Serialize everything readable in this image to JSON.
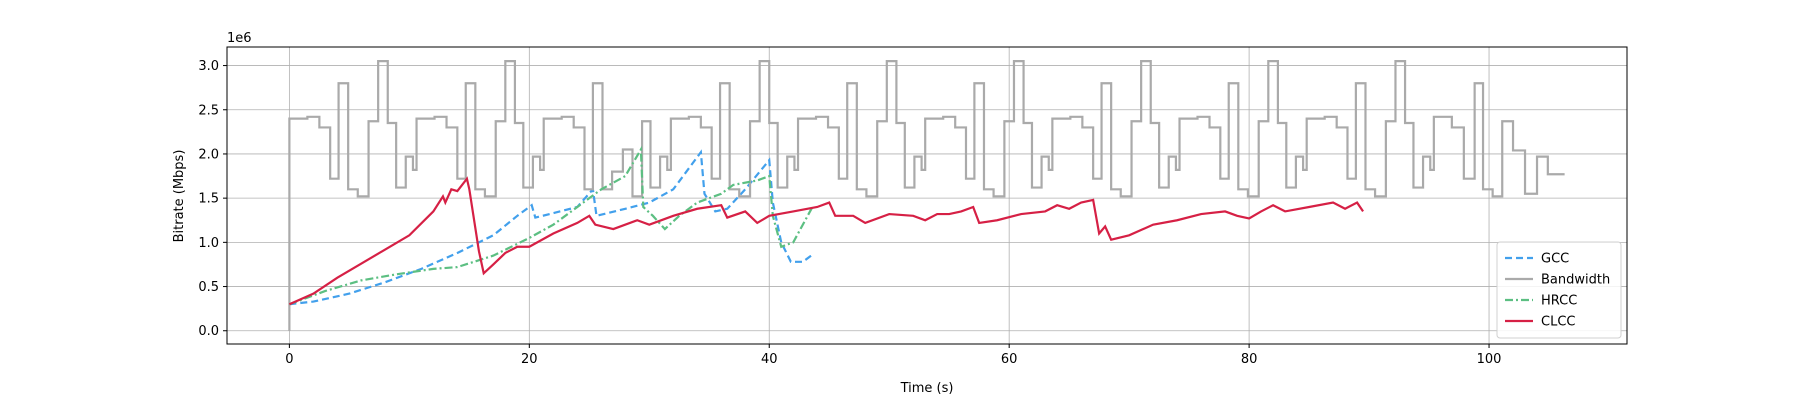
{
  "chart_data": {
    "type": "line",
    "xlabel": "Time (s)",
    "ylabel": "Bitrate (Mbps)",
    "y_offset_label": "1e6",
    "xlim": [
      -5.2,
      111.5
    ],
    "ylim": [
      -0.15,
      3.21
    ],
    "xticks": [
      0,
      20,
      40,
      60,
      80,
      100
    ],
    "yticks": [
      {
        "value": 0,
        "label": "0.0"
      },
      {
        "value": 0.5,
        "label": "0.5"
      },
      {
        "value": 1,
        "label": "1.0"
      },
      {
        "value": 1.5,
        "label": "1.5"
      },
      {
        "value": 2,
        "label": "2.0"
      },
      {
        "value": 2.5,
        "label": "2.5"
      },
      {
        "value": 3,
        "label": "3.0"
      }
    ],
    "grid": true,
    "legend": "lower right",
    "series": [
      {
        "name": "GCC",
        "color": "#42a0ec",
        "linestyle": "dashed",
        "x": [
          0,
          2,
          5,
          8,
          11,
          14,
          17,
          19,
          20.2,
          20.5,
          22,
          24,
          25.3,
          25.6,
          28,
          30,
          32,
          34.3,
          34.6,
          35.5,
          36.5,
          38,
          40,
          40.3,
          41,
          41.8,
          42.8,
          43.6
        ],
        "values": [
          0.3,
          0.33,
          0.42,
          0.55,
          0.7,
          0.88,
          1.08,
          1.3,
          1.42,
          1.28,
          1.33,
          1.4,
          1.6,
          1.3,
          1.38,
          1.45,
          1.6,
          2.02,
          1.55,
          1.35,
          1.38,
          1.6,
          1.93,
          1.45,
          1.0,
          0.78,
          0.78,
          0.86
        ]
      },
      {
        "name": "Bandwidth",
        "color": "#aaaaaa",
        "linestyle": "steps",
        "x": [
          0,
          0,
          1.5,
          2.5,
          3.4,
          4.1,
          4.9,
          5.7,
          6.6,
          7.4,
          8.2,
          8.9,
          9.7,
          10.3,
          10.6,
          12.1,
          13.1,
          14,
          14.7,
          15.5,
          16.3,
          17.2,
          18,
          18.8,
          19.5,
          20.3,
          20.9,
          21.2,
          22.7,
          23.7,
          24.6,
          25.3,
          26.1,
          26.9,
          27.8,
          28.6,
          29.4,
          30.1,
          30.9,
          31.5,
          31.8,
          33.3,
          34.3,
          35.2,
          35.9,
          36.7,
          37.5,
          38.4,
          39.2,
          40,
          40.7,
          41.5,
          42.1,
          42.4,
          43.9,
          44.9,
          45.8,
          46.5,
          47.3,
          48.1,
          49,
          49.8,
          50.6,
          51.3,
          52.1,
          52.7,
          53,
          54.5,
          55.5,
          56.4,
          57.1,
          57.9,
          58.7,
          59.6,
          60.4,
          61.2,
          61.9,
          62.7,
          63.3,
          63.6,
          65.1,
          66.1,
          67,
          67.7,
          68.5,
          69.3,
          70.2,
          71,
          71.8,
          72.5,
          73.3,
          73.9,
          74.2,
          75.7,
          76.7,
          77.6,
          78.3,
          79.1,
          79.9,
          80.8,
          81.6,
          82.4,
          83.1,
          83.9,
          84.5,
          84.8,
          86.3,
          87.3,
          88.2,
          88.9,
          89.7,
          90.5,
          91.4,
          92.2,
          93,
          93.7,
          94.5,
          95.1,
          95.4,
          96.9,
          97.9,
          98.8,
          99.5,
          100.3,
          101.1,
          102,
          103,
          104,
          104.9,
          106.3
        ],
        "values": [
          0,
          2.4,
          2.42,
          2.3,
          1.72,
          2.8,
          1.6,
          1.52,
          2.37,
          3.05,
          2.35,
          1.62,
          1.97,
          1.82,
          2.4,
          2.42,
          2.3,
          1.72,
          2.8,
          1.6,
          1.52,
          2.37,
          3.05,
          2.35,
          1.62,
          1.97,
          1.82,
          2.4,
          2.42,
          2.3,
          1.6,
          2.8,
          1.6,
          1.8,
          2.05,
          1.52,
          2.37,
          1.62,
          1.97,
          1.82,
          2.4,
          2.42,
          2.3,
          1.72,
          2.8,
          1.6,
          1.52,
          2.37,
          3.05,
          2.35,
          1.62,
          1.97,
          1.82,
          2.4,
          2.42,
          2.3,
          1.72,
          2.8,
          1.6,
          1.52,
          2.37,
          3.05,
          2.35,
          1.62,
          1.97,
          1.82,
          2.4,
          2.42,
          2.3,
          1.72,
          2.8,
          1.6,
          1.52,
          2.37,
          3.05,
          2.35,
          1.62,
          1.97,
          1.82,
          2.4,
          2.42,
          2.3,
          1.72,
          2.8,
          1.6,
          1.52,
          2.37,
          3.05,
          2.35,
          1.62,
          1.97,
          1.82,
          2.4,
          2.42,
          2.3,
          1.72,
          2.8,
          1.6,
          1.52,
          2.37,
          3.05,
          2.35,
          1.62,
          1.97,
          1.82,
          2.4,
          2.42,
          2.3,
          1.72,
          2.8,
          1.6,
          1.52,
          2.37,
          3.05,
          2.35,
          1.62,
          1.97,
          1.82,
          2.42,
          2.3,
          1.72,
          2.8,
          1.6,
          1.52,
          2.37,
          2.04,
          1.55,
          1.97,
          1.77,
          1.77
        ]
      },
      {
        "name": "HRCC",
        "color": "#5cbf82",
        "linestyle": "dashdot",
        "x": [
          0,
          3,
          6,
          9,
          12,
          14,
          17,
          20,
          22,
          24,
          25,
          26,
          28,
          29.3,
          29.5,
          30.3,
          31.3,
          32.5,
          34,
          36,
          37,
          39,
          40,
          40.3,
          41,
          42,
          43,
          43.6
        ],
        "values": [
          0.3,
          0.45,
          0.57,
          0.64,
          0.7,
          0.72,
          0.85,
          1.05,
          1.2,
          1.4,
          1.5,
          1.6,
          1.75,
          2.05,
          1.4,
          1.3,
          1.15,
          1.3,
          1.45,
          1.55,
          1.65,
          1.7,
          1.75,
          1.3,
          0.95,
          1.0,
          1.25,
          1.4
        ]
      },
      {
        "name": "CLCC",
        "color": "#d62045",
        "linestyle": "solid",
        "x": [
          0,
          2,
          4,
          6,
          8,
          10,
          12,
          12.8,
          13,
          13.5,
          14,
          14.8,
          15,
          15.8,
          16.2,
          17,
          18,
          19,
          20,
          22,
          24,
          25,
          25.5,
          27,
          29,
          30,
          32,
          34,
          36,
          36.5,
          38,
          39,
          40,
          42,
          44,
          45,
          45.5,
          47,
          48,
          50,
          52,
          53,
          54,
          55,
          56,
          57,
          57.5,
          59,
          61,
          63,
          64,
          65,
          66,
          67,
          67.5,
          68,
          68.5,
          70,
          72,
          74,
          76,
          78,
          79,
          80,
          81,
          82,
          83,
          85,
          87,
          88,
          89,
          89.5
        ],
        "values": [
          0.3,
          0.42,
          0.6,
          0.76,
          0.92,
          1.08,
          1.35,
          1.52,
          1.45,
          1.6,
          1.58,
          1.72,
          1.6,
          0.9,
          0.65,
          0.75,
          0.88,
          0.95,
          0.95,
          1.1,
          1.22,
          1.3,
          1.2,
          1.15,
          1.25,
          1.2,
          1.3,
          1.38,
          1.42,
          1.28,
          1.35,
          1.22,
          1.3,
          1.35,
          1.4,
          1.45,
          1.3,
          1.3,
          1.22,
          1.32,
          1.3,
          1.25,
          1.32,
          1.32,
          1.35,
          1.4,
          1.22,
          1.25,
          1.32,
          1.35,
          1.42,
          1.38,
          1.45,
          1.48,
          1.1,
          1.18,
          1.03,
          1.08,
          1.2,
          1.25,
          1.32,
          1.35,
          1.3,
          1.27,
          1.35,
          1.42,
          1.35,
          1.4,
          1.45,
          1.38,
          1.45,
          1.35
        ]
      }
    ]
  }
}
